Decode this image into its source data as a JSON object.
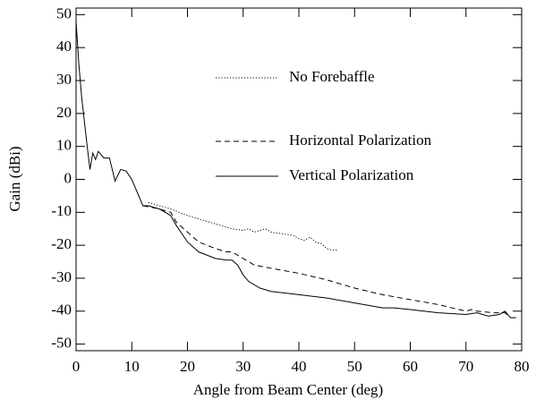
{
  "chart_data": {
    "type": "line",
    "xlabel": "Angle from Beam Center (deg)",
    "ylabel": "Gain (dBi)",
    "xlim": [
      0,
      80
    ],
    "xticks": [
      0,
      10,
      20,
      30,
      40,
      50,
      60,
      70,
      80
    ],
    "ylim": [
      -52,
      52
    ],
    "yticks": [
      -50,
      -40,
      -30,
      -20,
      -10,
      0,
      10,
      20,
      30,
      40,
      50
    ],
    "legend": "top-center",
    "series": [
      {
        "name": "No Forebaffle",
        "color": "#000000",
        "style": "dotted",
        "x": [
          13,
          15,
          17,
          20,
          22,
          25,
          28,
          30,
          31,
          32,
          33,
          34,
          35,
          37,
          39,
          40,
          41,
          42,
          43,
          44,
          45,
          46,
          47
        ],
        "values": [
          -7,
          -8,
          -9,
          -11,
          -12,
          -13.5,
          -15,
          -15.5,
          -15,
          -16,
          -15.5,
          -15,
          -16,
          -16.5,
          -17,
          -18,
          -18.5,
          -17.5,
          -19,
          -19.5,
          -21,
          -21.5,
          -21.5
        ]
      },
      {
        "name": "Horizontal Polarization",
        "color": "#000000",
        "style": "dashed",
        "x": [
          12,
          15,
          17,
          18,
          20,
          22,
          25,
          27,
          28,
          30,
          32,
          35,
          40,
          45,
          50,
          55,
          60,
          65,
          70,
          71,
          72,
          75,
          77,
          78
        ],
        "values": [
          -8,
          -9,
          -10,
          -13,
          -16,
          -19,
          -21,
          -22,
          -22,
          -24,
          -26,
          -27,
          -28.5,
          -30.5,
          -33,
          -35,
          -36.5,
          -38,
          -40,
          -39.5,
          -40,
          -40.5,
          -40.5,
          -42
        ]
      },
      {
        "name": "Vertical Polarization",
        "color": "#000000",
        "style": "solid",
        "x": [
          0,
          0.5,
          1,
          2,
          2.5,
          3,
          3.5,
          4,
          5,
          6,
          7,
          8,
          9,
          10,
          11,
          12,
          13,
          15,
          17,
          18,
          20,
          22,
          25,
          27,
          28,
          29,
          30,
          31,
          33,
          35,
          40,
          45,
          50,
          55,
          57,
          60,
          65,
          70,
          72,
          74,
          76,
          77,
          78,
          79
        ],
        "values": [
          48,
          35,
          25,
          10,
          3,
          8,
          6,
          8.5,
          6.5,
          6.5,
          -0.5,
          3,
          2.5,
          0,
          -4,
          -8,
          -8,
          -9,
          -11,
          -14,
          -19,
          -22,
          -24,
          -24.5,
          -24.5,
          -26,
          -29,
          -31,
          -33,
          -34,
          -35,
          -36,
          -37.5,
          -39,
          -39,
          -39.5,
          -40.5,
          -41,
          -40.5,
          -41.5,
          -41,
          -40,
          -42,
          -42
        ]
      }
    ]
  }
}
